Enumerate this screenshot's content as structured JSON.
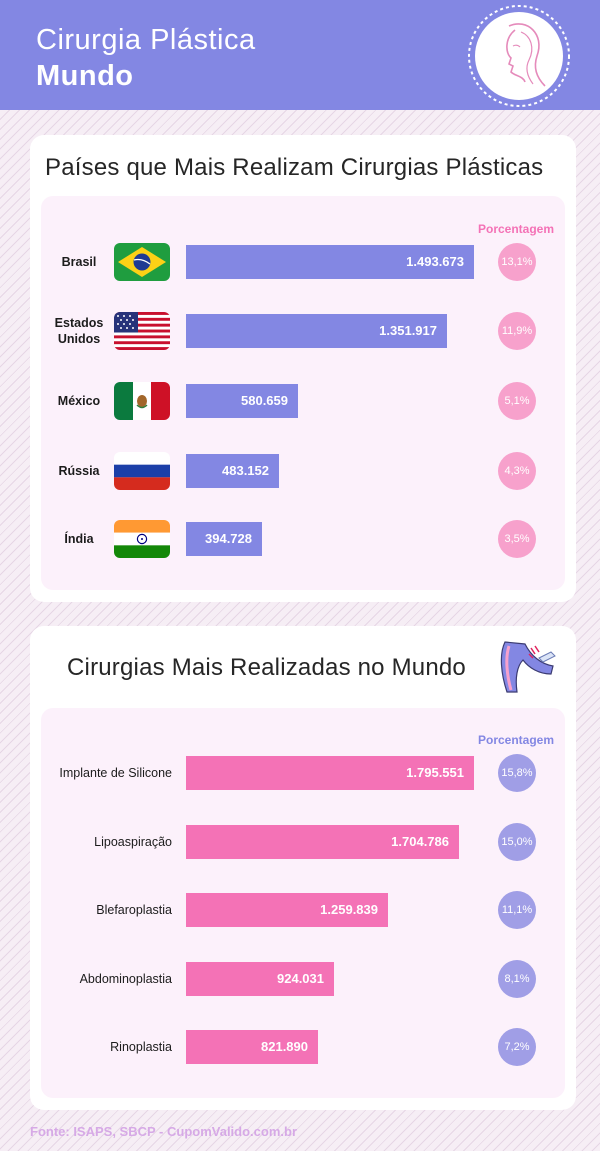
{
  "header": {
    "title_line1": "Cirurgia Plástica",
    "title_line2": "Mundo",
    "logo_icon": "woman-face-logo-icon"
  },
  "colors": {
    "header": "#8387e3",
    "country_bar": "#8387e3",
    "country_pct": "#f7a1cc",
    "surgery_bar": "#f472b6",
    "surgery_pct": "#a09ee6"
  },
  "chart_data": [
    {
      "type": "bar",
      "orientation": "horizontal",
      "title": "Países que Mais Realizam Cirurgias Plásticas",
      "percent_header": "Porcentagem",
      "categories": [
        "Brasil",
        "Estados Unidos",
        "México",
        "Rússia",
        "Índia"
      ],
      "flags": [
        "brazil-flag-icon",
        "usa-flag-icon",
        "mexico-flag-icon",
        "russia-flag-icon",
        "india-flag-icon"
      ],
      "values": [
        1493673,
        1351917,
        580659,
        483152,
        394728
      ],
      "value_labels": [
        "1.493.673",
        "1.351.917",
        "580.659",
        "483.152",
        "394.728"
      ],
      "percentages": [
        "13,1%",
        "11,9%",
        "5,1%",
        "4,3%",
        "3,5%"
      ]
    },
    {
      "type": "bar",
      "orientation": "horizontal",
      "title": "Cirurgias Mais Realizadas no Mundo",
      "percent_header": "Porcentagem",
      "categories": [
        "Implante de Silicone",
        "Lipoaspiração",
        "Blefaroplastia",
        "Abdominoplastia",
        "Rinoplastia"
      ],
      "values": [
        1795551,
        1704786,
        1259839,
        924031,
        821890
      ],
      "value_labels": [
        "1.795.551",
        "1.704.786",
        "1.259.839",
        "924.031",
        "821.890"
      ],
      "percentages": [
        "15,8%",
        "15,0%",
        "11,1%",
        "8,1%",
        "7,2%"
      ]
    }
  ],
  "footer": {
    "source": "Fonte: ISAPS, SBCP - CupomValido.com.br"
  }
}
